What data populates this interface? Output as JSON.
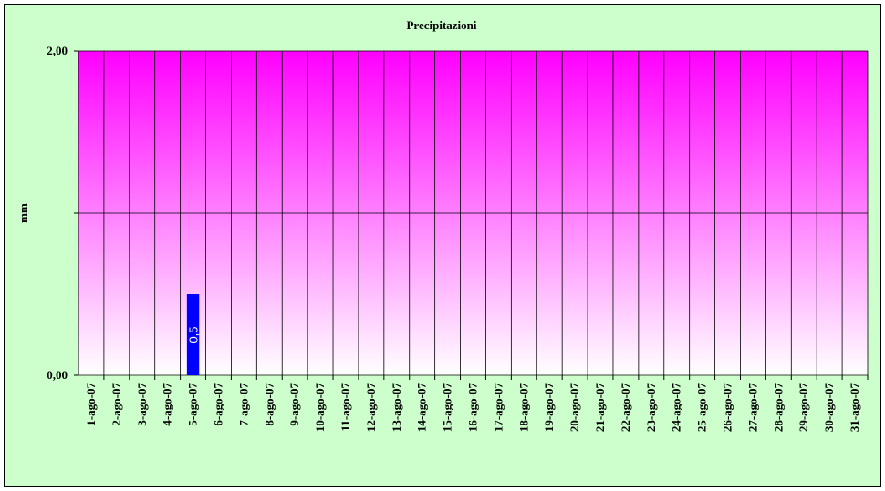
{
  "chart_data": {
    "type": "bar",
    "title": "Precipitazioni",
    "y_label": "mm",
    "categories": [
      "1-ago-07",
      "2-ago-07",
      "3-ago-07",
      "4-ago-07",
      "5-ago-07",
      "6-ago-07",
      "7-ago-07",
      "8-ago-07",
      "9-ago-07",
      "10-ago-07",
      "11-ago-07",
      "12-ago-07",
      "13-ago-07",
      "14-ago-07",
      "15-ago-07",
      "16-ago-07",
      "17-ago-07",
      "18-ago-07",
      "19-ago-07",
      "20-ago-07",
      "21-ago-07",
      "22-ago-07",
      "23-ago-07",
      "24-ago-07",
      "25-ago-07",
      "26-ago-07",
      "27-ago-07",
      "28-ago-07",
      "29-ago-07",
      "30-ago-07",
      "31-ago-07"
    ],
    "values": [
      0,
      0,
      0,
      0,
      0.5,
      0,
      0,
      0,
      0,
      0,
      0,
      0,
      0,
      0,
      0,
      0,
      0,
      0,
      0,
      0,
      0,
      0,
      0,
      0,
      0,
      0,
      0,
      0,
      0,
      0,
      0
    ],
    "value_labels": [
      null,
      null,
      null,
      null,
      "0,5",
      null,
      null,
      null,
      null,
      null,
      null,
      null,
      null,
      null,
      null,
      null,
      null,
      null,
      null,
      null,
      null,
      null,
      null,
      null,
      null,
      null,
      null,
      null,
      null,
      null,
      null
    ],
    "color": "#0000ff",
    "ylim": [
      0,
      2
    ],
    "yticks": [
      {
        "value": 0,
        "label": "0,00"
      },
      {
        "value": 1,
        "label": null
      },
      {
        "value": 2,
        "label": "2,00"
      }
    ],
    "grid": true
  }
}
